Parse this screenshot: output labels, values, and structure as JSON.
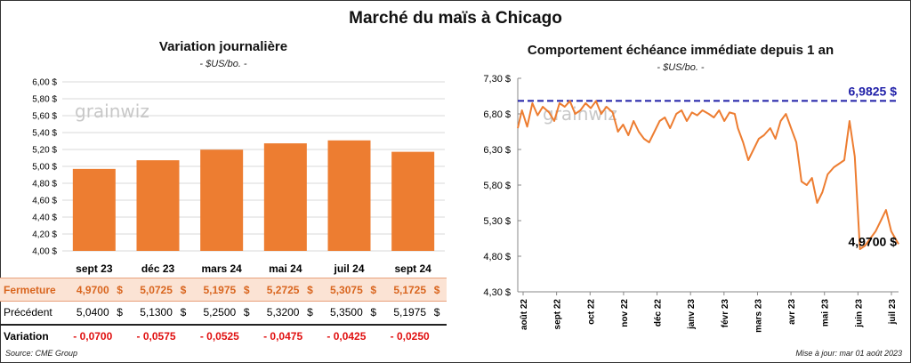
{
  "title": "Marché du maïs à Chicago",
  "left_panel": {
    "title": "Variation  journalière",
    "unit": "- $US/bo. -",
    "watermark": "grainwiz",
    "table": {
      "row_labels": {
        "close": "Fermeture",
        "previous": "Précédent",
        "change": "Variation"
      },
      "currency_symbol": "$",
      "close": [
        "4,9700",
        "5,0725",
        "5,1975",
        "5,2725",
        "5,3075",
        "5,1725"
      ],
      "previous": [
        "5,0400",
        "5,1300",
        "5,2500",
        "5,3200",
        "5,3500",
        "5,1975"
      ],
      "change": [
        "- 0,0700",
        "- 0,0575",
        "- 0,0525",
        "- 0,0475",
        "- 0,0425",
        "- 0,0250"
      ]
    }
  },
  "right_panel": {
    "title": "Comportement  échéance immédiate depuis 1 an",
    "unit": "- $US/bo. -",
    "watermark": "grainwiz"
  },
  "source": "Source: CME Group",
  "updated": "Mise à jour: mar 01 août 2023",
  "colors": {
    "accent": "#ed7d31",
    "dashed_line": "#1f1fa8",
    "negative": "#e01010",
    "close_row_bg": "#fbe3d4"
  },
  "chart_data": [
    {
      "type": "bar",
      "title": "Variation  journalière",
      "ylabel": "- $US/bo. -",
      "categories": [
        "sept 23",
        "déc 23",
        "mars 24",
        "mai 24",
        "juil 24",
        "sept 24"
      ],
      "values": [
        4.97,
        5.0725,
        5.1975,
        5.2725,
        5.3075,
        5.1725
      ],
      "ylim": [
        4.0,
        6.0
      ],
      "yticks": [
        4.0,
        4.2,
        4.4,
        4.6,
        4.8,
        5.0,
        5.2,
        5.4,
        5.6,
        5.8,
        6.0
      ],
      "ytick_labels": [
        "4,00 $",
        "4,20 $",
        "4,40 $",
        "4,60 $",
        "4,80 $",
        "5,00 $",
        "5,20 $",
        "5,40 $",
        "5,60 $",
        "5,80 $",
        "6,00 $"
      ],
      "grid": true,
      "color": "#ed7d31"
    },
    {
      "type": "line",
      "title": "Comportement  échéance immédiate depuis 1 an",
      "ylabel": "- $US/bo. -",
      "ylim": [
        4.3,
        7.3
      ],
      "yticks": [
        4.3,
        4.8,
        5.3,
        5.8,
        6.3,
        6.8,
        7.3
      ],
      "ytick_labels": [
        "4,30 $",
        "4,80 $",
        "5,30 $",
        "5,80 $",
        "6,30 $",
        "6,80 $",
        "7,30 $"
      ],
      "xtick_labels": [
        "août 22",
        "sept 22",
        "oct 22",
        "nov 22",
        "déc 22",
        "janv 23",
        "févr 23",
        "mars 23",
        "avr 23",
        "mai 23",
        "juin 23",
        "juil 23"
      ],
      "x_range": [
        "2022-08-01",
        "2023-08-01"
      ],
      "max_line": {
        "value": 6.9825,
        "label": "6,9825 $"
      },
      "last_value": {
        "value": 4.97,
        "label": "4,9700 $"
      },
      "color": "#ed7d31",
      "series": [
        {
          "x": [
            "2022-08-01",
            "2022-08-05",
            "2022-08-10",
            "2022-08-15",
            "2022-08-20",
            "2022-08-25",
            "2022-08-31",
            "2022-09-05",
            "2022-09-10",
            "2022-09-15",
            "2022-09-20",
            "2022-09-25",
            "2022-09-30",
            "2022-10-05",
            "2022-10-10",
            "2022-10-15",
            "2022-10-20",
            "2022-10-25",
            "2022-10-31",
            "2022-11-05",
            "2022-11-10",
            "2022-11-15",
            "2022-11-20",
            "2022-11-25",
            "2022-11-30",
            "2022-12-05",
            "2022-12-10",
            "2022-12-15",
            "2022-12-20",
            "2022-12-25",
            "2022-12-31",
            "2023-01-05",
            "2023-01-10",
            "2023-01-15",
            "2023-01-20",
            "2023-01-25",
            "2023-01-31",
            "2023-02-05",
            "2023-02-10",
            "2023-02-15",
            "2023-02-20",
            "2023-02-25",
            "2023-02-28",
            "2023-03-05",
            "2023-03-10",
            "2023-03-15",
            "2023-03-20",
            "2023-03-25",
            "2023-03-31",
            "2023-04-05",
            "2023-04-10",
            "2023-04-15",
            "2023-04-20",
            "2023-04-25",
            "2023-04-30",
            "2023-05-05",
            "2023-05-10",
            "2023-05-15",
            "2023-05-20",
            "2023-05-25",
            "2023-05-31",
            "2023-06-05",
            "2023-06-10",
            "2023-06-15",
            "2023-06-20",
            "2023-06-25",
            "2023-06-30",
            "2023-07-05",
            "2023-07-10",
            "2023-07-15",
            "2023-07-20",
            "2023-07-25",
            "2023-08-01"
          ],
          "y": [
            6.6,
            6.85,
            6.62,
            6.95,
            6.78,
            6.9,
            6.82,
            6.7,
            6.95,
            6.9,
            6.98,
            6.8,
            6.85,
            6.95,
            6.88,
            6.98,
            6.8,
            6.9,
            6.82,
            6.55,
            6.65,
            6.5,
            6.7,
            6.55,
            6.45,
            6.4,
            6.55,
            6.7,
            6.75,
            6.6,
            6.8,
            6.85,
            6.7,
            6.82,
            6.78,
            6.85,
            6.8,
            6.75,
            6.85,
            6.7,
            6.82,
            6.8,
            6.6,
            6.4,
            6.15,
            6.3,
            6.45,
            6.5,
            6.6,
            6.45,
            6.7,
            6.8,
            6.6,
            6.4,
            5.85,
            5.8,
            5.9,
            5.55,
            5.7,
            5.95,
            6.05,
            6.1,
            6.15,
            6.7,
            6.2,
            4.9,
            4.95,
            5.05,
            5.15,
            5.3,
            5.45,
            5.15,
            4.97
          ]
        }
      ]
    }
  ]
}
